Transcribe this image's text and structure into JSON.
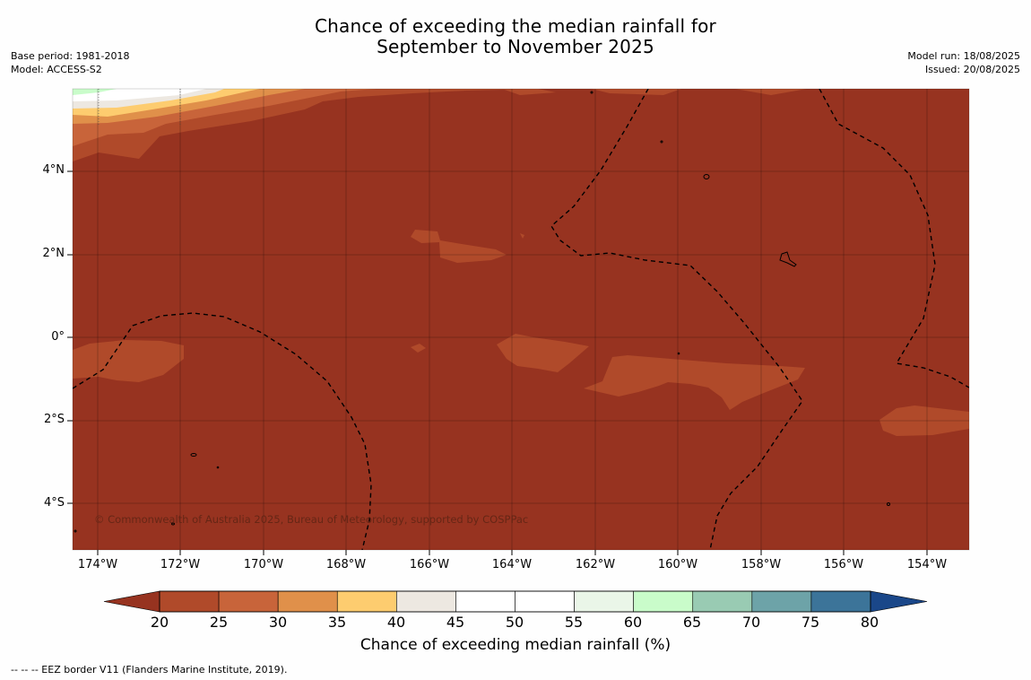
{
  "title": {
    "line1": "Chance of exceeding the median rainfall for",
    "line2": "September to November 2025"
  },
  "meta_left": {
    "base_period": "Base period: 1981-2018",
    "model": "Model: ACCESS-S2"
  },
  "meta_right": {
    "model_run": "Model run: 18/08/2025",
    "issued": "Issued: 20/08/2025"
  },
  "map": {
    "background_color": "#973320",
    "lat_labels": [
      "4°N",
      "2°N",
      "0°",
      "2°S",
      "4°S"
    ],
    "lon_labels": [
      "174°W",
      "172°W",
      "170°W",
      "168°W",
      "166°W",
      "164°W",
      "162°W",
      "160°W",
      "158°W",
      "156°W",
      "154°W"
    ],
    "copyright": "© Commonwealth of Australia 2025, Bureau of Meteorology, supported by COSPPac",
    "layers": [
      "rainfall-probability-contours",
      "eez-border-dashed",
      "island-outlines",
      "graticule"
    ]
  },
  "colorbar": {
    "colors": [
      "#973320",
      "#b04a2a",
      "#c8643a",
      "#e0904a",
      "#fdcc6f",
      "#ede8e1",
      "#ffffff",
      "#ffffff",
      "#eaf6e8",
      "#c9fcca",
      "#99cbb3",
      "#6da3a8",
      "#3c7499",
      "#1a4789"
    ],
    "tick_labels": [
      "20",
      "25",
      "30",
      "35",
      "40",
      "45",
      "50",
      "55",
      "60",
      "65",
      "70",
      "75",
      "80"
    ],
    "title": "Chance of exceeding median rainfall (%)"
  },
  "footnote": "-- -- -- EEZ border V11 (Flanders Marine Institute, 2019)."
}
